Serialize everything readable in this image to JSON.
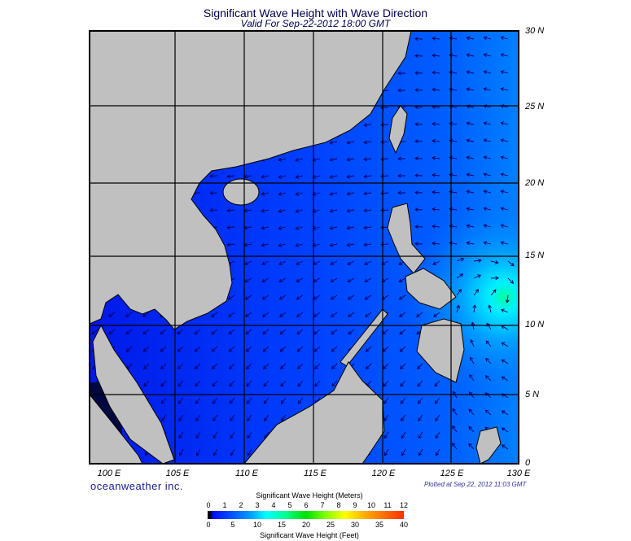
{
  "header": {
    "title": "Significant Wave Height with Wave Direction",
    "subtitle": "Valid For Sep-22-2012 18:00 GMT"
  },
  "map": {
    "lon_labels": [
      "100 E",
      "105 E",
      "110 E",
      "115 E",
      "120 E",
      "125 E",
      "130 E"
    ],
    "lat_labels": [
      "30 N",
      "25 N",
      "20 N",
      "15 N",
      "10 N",
      "5 N",
      "0"
    ],
    "lon_range": [
      98.8,
      130
    ],
    "lat_range": [
      0,
      30
    ],
    "ocean_color": "#0040ff",
    "land_color": "#c0c0c0"
  },
  "footer": {
    "brand": "oceanweather inc.",
    "plotted": "Plotted at Sep 22, 2012 11:03 GMT"
  },
  "colorbar": {
    "title_m": "Significant Wave Height (Meters)",
    "title_ft": "Significant Wave Height (Feet)",
    "ticks_m": [
      "0",
      "1",
      "2",
      "3",
      "4",
      "5",
      "6",
      "7",
      "8",
      "9",
      "10",
      "11",
      "12"
    ],
    "ticks_ft": [
      "0",
      "5",
      "10",
      "15",
      "20",
      "25",
      "30",
      "35",
      "40"
    ]
  }
}
